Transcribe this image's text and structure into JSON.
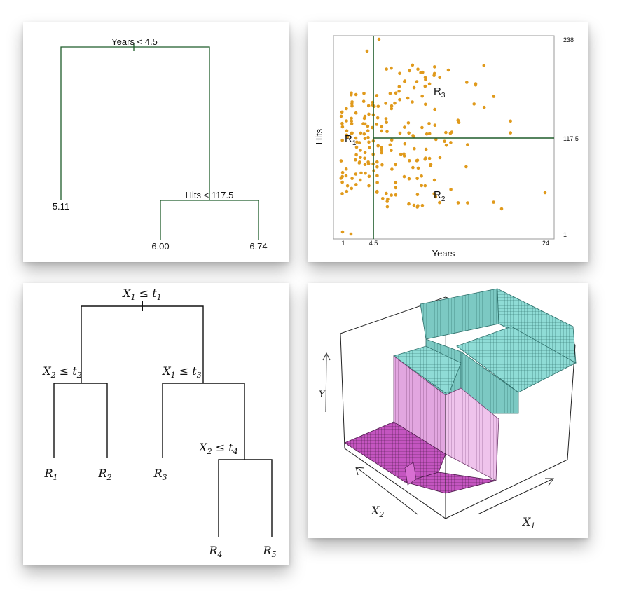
{
  "tree1": {
    "root_label": "Years < 4.5",
    "child_label": "Hits < 117.5",
    "leaves": [
      "5.11",
      "6.00",
      "6.74"
    ],
    "line_color": "#1e5c2a"
  },
  "partition": {
    "xlabel": "Years",
    "ylabel": "Hits",
    "x_ticks": [
      "1",
      "4.5",
      "24"
    ],
    "y_ticks": [
      "238",
      "117.5",
      "1"
    ],
    "regions": [
      {
        "base": "R",
        "sub": "1"
      },
      {
        "base": "R",
        "sub": "2"
      },
      {
        "base": "R",
        "sub": "3"
      }
    ],
    "point_color": "#e09a1c",
    "line_color": "#1e5c2a"
  },
  "tree2": {
    "splits": [
      {
        "var": "X",
        "vsub": "1",
        "thr": "t",
        "tsub": "1"
      },
      {
        "var": "X",
        "vsub": "2",
        "thr": "t",
        "tsub": "2"
      },
      {
        "var": "X",
        "vsub": "1",
        "thr": "t",
        "tsub": "3"
      },
      {
        "var": "X",
        "vsub": "2",
        "thr": "t",
        "tsub": "4"
      }
    ],
    "leaves": [
      {
        "base": "R",
        "sub": "1"
      },
      {
        "base": "R",
        "sub": "2"
      },
      {
        "base": "R",
        "sub": "3"
      },
      {
        "base": "R",
        "sub": "4"
      },
      {
        "base": "R",
        "sub": "5"
      }
    ],
    "leq": "≤"
  },
  "surface": {
    "ylabel": "Y",
    "x1": {
      "base": "X",
      "sub": "1"
    },
    "x2": {
      "base": "X",
      "sub": "2"
    },
    "teal": "#8fdcd6",
    "pink": "#e2a6e0",
    "magenta": "#c455c0"
  }
}
